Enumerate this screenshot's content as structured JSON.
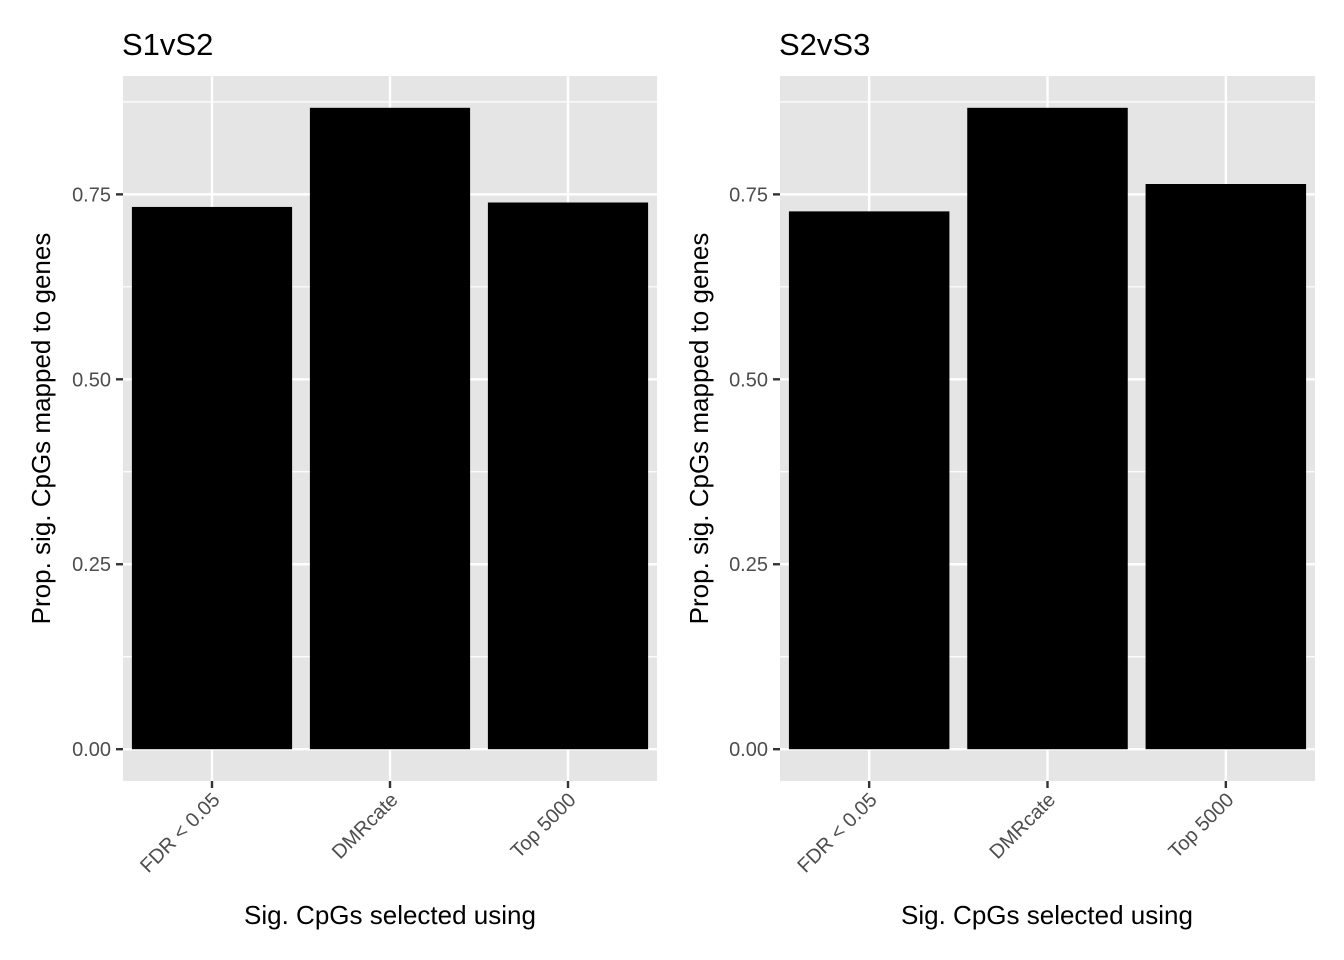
{
  "chart_data": [
    {
      "type": "bar",
      "title": "S1vS2",
      "xlabel": "Sig. CpGs selected using",
      "ylabel": "Prop. sig. CpGs mapped to genes",
      "categories": [
        "FDR < 0.05",
        "DMRcate",
        "Top 5000"
      ],
      "values": [
        0.733,
        0.867,
        0.739
      ],
      "ylim": [
        -0.043,
        0.91
      ],
      "yticks": [
        0.0,
        0.25,
        0.5,
        0.75
      ],
      "ytick_labels": [
        "0.00",
        "0.25",
        "0.50",
        "0.75"
      ],
      "grid": true,
      "bar_color": "#000000",
      "panel_color": "#e5e5e5"
    },
    {
      "type": "bar",
      "title": "S2vS3",
      "xlabel": "Sig. CpGs selected using",
      "ylabel": "Prop. sig. CpGs mapped to genes",
      "categories": [
        "FDR < 0.05",
        "DMRcate",
        "Top 5000"
      ],
      "values": [
        0.727,
        0.867,
        0.764
      ],
      "ylim": [
        -0.043,
        0.91
      ],
      "yticks": [
        0.0,
        0.25,
        0.5,
        0.75
      ],
      "ytick_labels": [
        "0.00",
        "0.25",
        "0.50",
        "0.75"
      ],
      "grid": true,
      "bar_color": "#000000",
      "panel_color": "#e5e5e5"
    }
  ]
}
